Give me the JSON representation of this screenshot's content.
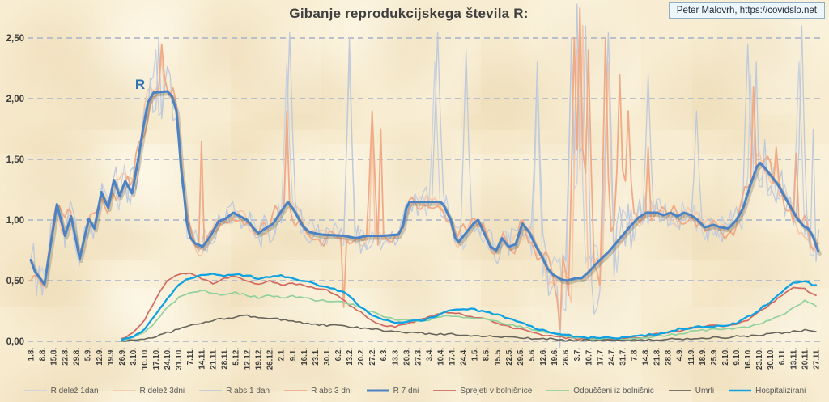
{
  "attribution": "Peter Malovrh, https://covidslo.net",
  "annotation": {
    "text": "R",
    "color": "#2e74b5",
    "x_week": 9.6,
    "value": 2.08
  },
  "chart_data": {
    "type": "line",
    "title": "Gibanje reprodukcijskega števila R:",
    "xlabel": "",
    "ylabel": "",
    "ylim": [
      0,
      2.5
    ],
    "grid": "horizontal-dashed",
    "legend_position": "bottom",
    "background_color": "#f8edd2",
    "grid_color": "#b9c0cc",
    "y_ticks": [
      "0,00",
      "0,50",
      "1,00",
      "1,50",
      "2,00",
      "2,50"
    ],
    "y_tick_values": [
      0,
      0.5,
      1.0,
      1.5,
      2.0,
      2.5
    ],
    "x_labels": [
      "1.8.",
      "8.8.",
      "15.8.",
      "22.8.",
      "29.8.",
      "5.9.",
      "12.9.",
      "19.9.",
      "26.9.",
      "3.10.",
      "10.10.",
      "17.10.",
      "24.10.",
      "31.10.",
      "7.11.",
      "14.11.",
      "21.11.",
      "28.11.",
      "5.12.",
      "12.12.",
      "19.12.",
      "26.12.",
      "2.1.",
      "9.1.",
      "16.1.",
      "23.1.",
      "30.1.",
      "6.2.",
      "13.2.",
      "20.2.",
      "27.2.",
      "6.3.",
      "13.3.",
      "20.3.",
      "27.3.",
      "3.4.",
      "10.4.",
      "17.4.",
      "24.4.",
      "1.5.",
      "8.5.",
      "15.5.",
      "22.5.",
      "29.5.",
      "5.6.",
      "12.6.",
      "19.6.",
      "26.6.",
      "3.7.",
      "10.7.",
      "17.7.",
      "24.7.",
      "31.7.",
      "7.8.",
      "14.8.",
      "21.8.",
      "28.8.",
      "4.9.",
      "11.9.",
      "18.9.",
      "25.9.",
      "2.10.",
      "9.10.",
      "16.10.",
      "23.10.",
      "30.10.",
      "6.11.",
      "13.11.",
      "20.11.",
      "27.11."
    ],
    "noise_amp": [
      [
        0,
        0.2
      ],
      [
        3,
        0.17
      ],
      [
        6,
        0.14
      ],
      [
        9,
        0.2
      ],
      [
        11,
        0.25
      ],
      [
        13,
        0.17
      ],
      [
        15,
        0.13
      ],
      [
        18,
        0.12
      ],
      [
        21,
        0.14
      ],
      [
        22.5,
        0.17
      ],
      [
        24,
        0.12
      ],
      [
        27,
        0.12
      ],
      [
        29,
        0.14
      ],
      [
        32,
        0.1
      ],
      [
        34,
        0.12
      ],
      [
        36,
        0.15
      ],
      [
        38,
        0.14
      ],
      [
        40,
        0.13
      ],
      [
        42,
        0.14
      ],
      [
        44,
        0.18
      ],
      [
        46,
        0.28
      ],
      [
        47.5,
        0.4
      ],
      [
        49,
        0.42
      ],
      [
        50,
        0.38
      ],
      [
        51.5,
        0.3
      ],
      [
        53,
        0.2
      ],
      [
        55,
        0.15
      ],
      [
        57,
        0.13
      ],
      [
        59,
        0.14
      ],
      [
        61,
        0.14
      ],
      [
        63,
        0.18
      ],
      [
        64.5,
        0.25
      ],
      [
        66,
        0.2
      ],
      [
        67.5,
        0.22
      ],
      [
        68.5,
        0.26
      ],
      [
        69.2,
        0.22
      ]
    ],
    "series": [
      {
        "name": "R delež 1dan",
        "color": "#c9d1de",
        "width": 1.3,
        "style": "noisy",
        "seed": 11,
        "amp_scale": 0.85,
        "spikes": [
          [
            11.0,
            2.4
          ],
          [
            22.6,
            2.3
          ],
          [
            28.0,
            2.3
          ],
          [
            35.6,
            2.3
          ],
          [
            44.4,
            2.1
          ],
          [
            47.6,
            2.4
          ],
          [
            48.2,
            2.6
          ],
          [
            50.7,
            2.3
          ],
          [
            63.2,
            2.2
          ],
          [
            67.6,
            2.3
          ]
        ]
      },
      {
        "name": "R delež 3dni",
        "color": "#f6c8aa",
        "width": 1.7,
        "style": "noisy3",
        "seed": 23,
        "amp_scale": 0.85,
        "spikes": [
          [
            11.6,
            2.35
          ],
          [
            22.5,
            1.8
          ],
          [
            30.1,
            1.8
          ],
          [
            47.9,
            2.4
          ],
          [
            48.5,
            2.6
          ],
          [
            50.7,
            2.3
          ],
          [
            63.5,
            2.0
          ],
          [
            65.6,
            1.55
          ]
        ]
      },
      {
        "name": "R abs 1 dan",
        "color": "#bfc9d9",
        "width": 1.3,
        "style": "noisy",
        "seed": 37,
        "amp_scale": 1.0,
        "spikes": [
          [
            11.2,
            2.5
          ],
          [
            22.7,
            2.55
          ],
          [
            28.1,
            2.5
          ],
          [
            35.7,
            2.55
          ],
          [
            38.2,
            2.4
          ],
          [
            44.6,
            2.3
          ],
          [
            46.4,
            -0.05
          ],
          [
            47.4,
            2.5
          ],
          [
            48.0,
            2.78
          ],
          [
            48.7,
            2.6
          ],
          [
            50.8,
            2.55
          ],
          [
            54.2,
            2.2
          ],
          [
            58.5,
            1.9
          ],
          [
            63.1,
            2.45
          ],
          [
            63.8,
            2.3
          ],
          [
            67.7,
            2.6
          ],
          [
            68.8,
            1.75
          ]
        ]
      },
      {
        "name": "R abs 3 dni",
        "color": "#f0ab86",
        "width": 1.8,
        "style": "noisy3",
        "seed": 53,
        "amp_scale": 1.0,
        "spikes": [
          [
            11.6,
            2.45
          ],
          [
            15.1,
            1.65
          ],
          [
            22.5,
            1.9
          ],
          [
            27.5,
            0.28
          ],
          [
            30.0,
            1.9
          ],
          [
            30.7,
            1.75
          ],
          [
            46.5,
            0.1
          ],
          [
            47.8,
            2.5
          ],
          [
            48.2,
            2.75
          ],
          [
            48.9,
            2.4
          ],
          [
            50.6,
            2.5
          ],
          [
            51.7,
            2.2
          ],
          [
            52.4,
            1.9
          ],
          [
            54.2,
            1.6
          ],
          [
            63.4,
            2.1
          ],
          [
            65.6,
            1.6
          ],
          [
            67.3,
            1.55
          ]
        ]
      },
      {
        "name": "R 7 dni",
        "color": "#4a82c4",
        "width": 3,
        "style": "keypoints",
        "keypoints": [
          [
            0,
            0.67
          ],
          [
            0.35,
            0.58
          ],
          [
            1.2,
            0.47
          ],
          [
            2.3,
            1.13
          ],
          [
            3.0,
            0.87
          ],
          [
            3.55,
            1.03
          ],
          [
            4.3,
            0.68
          ],
          [
            5.1,
            1.01
          ],
          [
            5.6,
            0.93
          ],
          [
            6.2,
            1.23
          ],
          [
            6.8,
            1.1
          ],
          [
            7.3,
            1.33
          ],
          [
            7.8,
            1.2
          ],
          [
            8.3,
            1.32
          ],
          [
            8.9,
            1.22
          ],
          [
            9.4,
            1.48
          ],
          [
            9.9,
            1.77
          ],
          [
            10.3,
            1.97
          ],
          [
            10.8,
            2.05
          ],
          [
            12.0,
            2.06
          ],
          [
            12.4,
            2.02
          ],
          [
            12.8,
            1.9
          ],
          [
            13.0,
            1.68
          ],
          [
            13.2,
            1.43
          ],
          [
            13.5,
            1.19
          ],
          [
            13.7,
            0.99
          ],
          [
            14.0,
            0.86
          ],
          [
            14.4,
            0.81
          ],
          [
            15.1,
            0.78
          ],
          [
            15.8,
            0.87
          ],
          [
            16.5,
            0.99
          ],
          [
            17.1,
            1.01
          ],
          [
            17.8,
            1.06
          ],
          [
            18.4,
            1.03
          ],
          [
            19.0,
            1.0
          ],
          [
            19.6,
            0.93
          ],
          [
            20.0,
            0.89
          ],
          [
            20.6,
            0.93
          ],
          [
            21.3,
            0.97
          ],
          [
            22.0,
            1.07
          ],
          [
            22.6,
            1.15
          ],
          [
            23.2,
            1.07
          ],
          [
            23.9,
            0.95
          ],
          [
            24.5,
            0.9
          ],
          [
            25.5,
            0.88
          ],
          [
            27.5,
            0.87
          ],
          [
            28.6,
            0.85
          ],
          [
            29.5,
            0.87
          ],
          [
            31.0,
            0.87
          ],
          [
            32.3,
            0.88
          ],
          [
            32.7,
            0.95
          ],
          [
            33.0,
            1.1
          ],
          [
            33.3,
            1.15
          ],
          [
            36.0,
            1.15
          ],
          [
            36.3,
            1.12
          ],
          [
            36.9,
            1.0
          ],
          [
            37.3,
            0.85
          ],
          [
            37.6,
            0.82
          ],
          [
            38.3,
            0.9
          ],
          [
            38.9,
            0.97
          ],
          [
            39.3,
            1.0
          ],
          [
            39.9,
            0.88
          ],
          [
            40.4,
            0.78
          ],
          [
            40.9,
            0.75
          ],
          [
            41.4,
            0.85
          ],
          [
            42.0,
            0.78
          ],
          [
            42.6,
            0.8
          ],
          [
            43.2,
            0.97
          ],
          [
            43.8,
            0.9
          ],
          [
            44.3,
            0.8
          ],
          [
            44.9,
            0.7
          ],
          [
            45.4,
            0.6
          ],
          [
            45.9,
            0.55
          ],
          [
            46.6,
            0.51
          ],
          [
            47.1,
            0.5
          ],
          [
            47.9,
            0.52
          ],
          [
            48.4,
            0.52
          ],
          [
            49.0,
            0.57
          ],
          [
            49.9,
            0.66
          ],
          [
            50.8,
            0.74
          ],
          [
            51.7,
            0.84
          ],
          [
            52.6,
            0.94
          ],
          [
            53.4,
            1.02
          ],
          [
            54.1,
            1.06
          ],
          [
            55.0,
            1.06
          ],
          [
            55.6,
            1.04
          ],
          [
            56.2,
            1.06
          ],
          [
            56.8,
            1.03
          ],
          [
            57.4,
            1.06
          ],
          [
            58.0,
            1.04
          ],
          [
            58.6,
            1.0
          ],
          [
            59.2,
            0.94
          ],
          [
            60.0,
            0.96
          ],
          [
            60.6,
            0.94
          ],
          [
            61.3,
            0.93
          ],
          [
            62.0,
            1.0
          ],
          [
            62.6,
            1.1
          ],
          [
            63.2,
            1.28
          ],
          [
            63.8,
            1.44
          ],
          [
            64.1,
            1.47
          ],
          [
            64.5,
            1.43
          ],
          [
            65.0,
            1.37
          ],
          [
            65.6,
            1.3
          ],
          [
            66.2,
            1.2
          ],
          [
            66.8,
            1.1
          ],
          [
            67.3,
            1.02
          ],
          [
            67.9,
            0.95
          ],
          [
            68.3,
            0.93
          ],
          [
            68.7,
            0.87
          ],
          [
            69.2,
            0.74
          ]
        ]
      },
      {
        "name": "Sprejeti v bolnišnice",
        "color": "#d16a60",
        "width": 1.7,
        "style": "wiggle",
        "seed": 71,
        "values": [
          null,
          null,
          null,
          null,
          null,
          null,
          null,
          null,
          0.02,
          0.07,
          0.18,
          0.35,
          0.5,
          0.55,
          0.56,
          0.52,
          0.48,
          0.52,
          0.54,
          0.5,
          0.47,
          0.5,
          0.46,
          0.48,
          0.46,
          0.44,
          0.42,
          0.38,
          0.3,
          0.24,
          0.17,
          0.13,
          0.12,
          0.14,
          0.17,
          0.2,
          0.23,
          0.24,
          0.22,
          0.2,
          0.18,
          0.15,
          0.12,
          0.1,
          0.07,
          0.05,
          0.04,
          0.03,
          0.02,
          0.02,
          0.02,
          0.02,
          0.02,
          0.03,
          0.04,
          0.06,
          0.07,
          0.09,
          0.11,
          0.12,
          0.13,
          0.13,
          0.14,
          0.17,
          0.24,
          0.31,
          0.38,
          0.44,
          0.43,
          0.38
        ]
      },
      {
        "name": "Odpuščeni iz bolnišnic",
        "color": "#90d19e",
        "width": 1.7,
        "style": "wiggle",
        "seed": 83,
        "values": [
          null,
          null,
          null,
          null,
          null,
          null,
          null,
          null,
          0.01,
          0.03,
          0.08,
          0.16,
          0.28,
          0.36,
          0.4,
          0.42,
          0.4,
          0.38,
          0.4,
          0.38,
          0.36,
          0.38,
          0.36,
          0.37,
          0.36,
          0.34,
          0.33,
          0.33,
          0.31,
          0.28,
          0.24,
          0.2,
          0.18,
          0.17,
          0.17,
          0.18,
          0.2,
          0.21,
          0.2,
          0.19,
          0.18,
          0.16,
          0.14,
          0.12,
          0.1,
          0.08,
          0.06,
          0.04,
          0.03,
          0.02,
          0.02,
          0.02,
          0.02,
          0.02,
          0.03,
          0.04,
          0.05,
          0.06,
          0.08,
          0.09,
          0.1,
          0.1,
          0.11,
          0.12,
          0.14,
          0.18,
          0.22,
          0.27,
          0.34,
          0.29
        ]
      },
      {
        "name": "Umrli",
        "color": "#67645c",
        "width": 1.6,
        "style": "wiggle",
        "seed": 97,
        "values": [
          null,
          null,
          null,
          null,
          null,
          null,
          null,
          null,
          0.0,
          0.01,
          0.02,
          0.04,
          0.07,
          0.1,
          0.13,
          0.15,
          0.17,
          0.19,
          0.2,
          0.21,
          0.2,
          0.19,
          0.18,
          0.17,
          0.15,
          0.14,
          0.13,
          0.13,
          0.12,
          0.11,
          0.1,
          0.09,
          0.08,
          0.07,
          0.07,
          0.06,
          0.06,
          0.06,
          0.05,
          0.05,
          0.04,
          0.04,
          0.03,
          0.03,
          0.02,
          0.02,
          0.02,
          0.01,
          0.01,
          0.01,
          0.01,
          0.01,
          0.01,
          0.01,
          0.01,
          0.01,
          0.02,
          0.02,
          0.02,
          0.03,
          0.03,
          0.03,
          0.04,
          0.04,
          0.05,
          0.06,
          0.07,
          0.08,
          0.09,
          0.08
        ]
      },
      {
        "name": "Hospitalizirani",
        "color": "#0ea2e2",
        "width": 2.3,
        "style": "wiggle",
        "seed": 113,
        "values": [
          null,
          null,
          null,
          null,
          null,
          null,
          null,
          null,
          0.01,
          0.04,
          0.1,
          0.22,
          0.35,
          0.47,
          0.52,
          0.54,
          0.55,
          0.54,
          0.55,
          0.54,
          0.52,
          0.53,
          0.54,
          0.52,
          0.5,
          0.47,
          0.45,
          0.42,
          0.38,
          0.28,
          0.22,
          0.18,
          0.16,
          0.16,
          0.17,
          0.19,
          0.22,
          0.26,
          0.27,
          0.26,
          0.24,
          0.22,
          0.19,
          0.16,
          0.12,
          0.09,
          0.07,
          0.05,
          0.04,
          0.03,
          0.03,
          0.03,
          0.03,
          0.04,
          0.05,
          0.06,
          0.08,
          0.1,
          0.11,
          0.12,
          0.12,
          0.13,
          0.15,
          0.2,
          0.26,
          0.33,
          0.41,
          0.48,
          0.49,
          0.46
        ]
      }
    ]
  }
}
